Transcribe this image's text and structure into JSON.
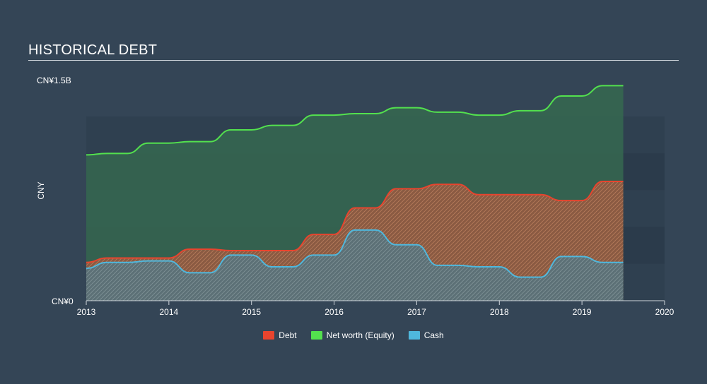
{
  "title": "HISTORICAL DEBT",
  "chart_data": {
    "type": "area",
    "ylabel": "CNY",
    "y_top_label": "CN¥1.5B",
    "y_bottom_label": "CN¥0",
    "ylim": [
      0,
      1.5
    ],
    "y_plot_max": 1.5,
    "xlim": [
      2013,
      2020
    ],
    "x_ticks": [
      "2013",
      "2014",
      "2015",
      "2016",
      "2017",
      "2018",
      "2019",
      "2020"
    ],
    "grid": true,
    "legend_position": "bottom-center",
    "colors": {
      "debt": "#e8442e",
      "equity": "#53e14e",
      "cash": "#4fb8dd"
    },
    "series": [
      {
        "name": "Net worth (Equity)",
        "key": "equity",
        "x": [
          2013.0,
          2013.25,
          2013.5,
          2013.75,
          2014.0,
          2014.25,
          2014.5,
          2014.75,
          2015.0,
          2015.25,
          2015.5,
          2015.75,
          2016.0,
          2016.25,
          2016.5,
          2016.75,
          2017.0,
          2017.25,
          2017.5,
          2017.75,
          2018.0,
          2018.25,
          2018.5,
          2018.75,
          2019.0,
          2019.25,
          2019.5
        ],
        "values": [
          0.99,
          1.0,
          1.0,
          1.07,
          1.07,
          1.08,
          1.08,
          1.16,
          1.16,
          1.19,
          1.19,
          1.26,
          1.26,
          1.27,
          1.27,
          1.31,
          1.31,
          1.28,
          1.28,
          1.26,
          1.26,
          1.29,
          1.29,
          1.39,
          1.39,
          1.46,
          1.46
        ]
      },
      {
        "name": "Debt",
        "key": "debt",
        "x": [
          2013.0,
          2013.25,
          2013.5,
          2013.75,
          2014.0,
          2014.25,
          2014.5,
          2014.75,
          2015.0,
          2015.25,
          2015.5,
          2015.75,
          2016.0,
          2016.25,
          2016.5,
          2016.75,
          2017.0,
          2017.25,
          2017.5,
          2017.75,
          2018.0,
          2018.25,
          2018.5,
          2018.75,
          2019.0,
          2019.25,
          2019.5
        ],
        "values": [
          0.26,
          0.29,
          0.29,
          0.29,
          0.29,
          0.35,
          0.35,
          0.34,
          0.34,
          0.34,
          0.34,
          0.45,
          0.45,
          0.63,
          0.63,
          0.76,
          0.76,
          0.79,
          0.79,
          0.72,
          0.72,
          0.72,
          0.72,
          0.68,
          0.68,
          0.81,
          0.81
        ]
      },
      {
        "name": "Cash",
        "key": "cash",
        "x": [
          2013.0,
          2013.25,
          2013.5,
          2013.75,
          2014.0,
          2014.25,
          2014.5,
          2014.75,
          2015.0,
          2015.25,
          2015.5,
          2015.75,
          2016.0,
          2016.25,
          2016.5,
          2016.75,
          2017.0,
          2017.25,
          2017.5,
          2017.75,
          2018.0,
          2018.25,
          2018.5,
          2018.75,
          2019.0,
          2019.25,
          2019.5
        ],
        "values": [
          0.22,
          0.26,
          0.26,
          0.27,
          0.27,
          0.19,
          0.19,
          0.31,
          0.31,
          0.23,
          0.23,
          0.31,
          0.31,
          0.48,
          0.48,
          0.38,
          0.38,
          0.24,
          0.24,
          0.23,
          0.23,
          0.16,
          0.16,
          0.3,
          0.3,
          0.26,
          0.26
        ]
      }
    ]
  },
  "legend": [
    {
      "label": "Debt",
      "color": "#e8442e"
    },
    {
      "label": "Net worth (Equity)",
      "color": "#53e14e"
    },
    {
      "label": "Cash",
      "color": "#4fb8dd"
    }
  ]
}
